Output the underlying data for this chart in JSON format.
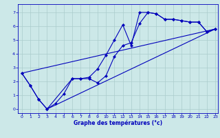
{
  "xlabel": "Graphe des températures (°c)",
  "xlim": [
    -0.5,
    23.3
  ],
  "ylim": [
    -0.3,
    7.6
  ],
  "xticks": [
    0,
    1,
    2,
    3,
    4,
    5,
    6,
    7,
    8,
    9,
    10,
    11,
    12,
    13,
    14,
    15,
    16,
    17,
    18,
    19,
    20,
    21,
    22,
    23
  ],
  "yticks": [
    0,
    1,
    2,
    3,
    4,
    5,
    6,
    7
  ],
  "bg_color": "#cce8e8",
  "grid_color": "#aacccc",
  "line_color": "#0000bb",
  "line1_x": [
    0,
    1,
    2,
    3,
    4,
    5,
    6,
    7,
    8,
    9,
    10,
    11,
    12,
    13,
    14,
    15,
    16,
    17,
    18,
    19,
    20,
    21,
    22,
    23
  ],
  "line1_y": [
    2.6,
    1.7,
    0.7,
    0.0,
    0.4,
    1.1,
    2.2,
    2.2,
    2.2,
    1.9,
    2.4,
    3.8,
    4.6,
    4.8,
    6.2,
    7.0,
    6.9,
    6.5,
    6.5,
    6.4,
    6.3,
    6.3,
    5.6,
    5.8
  ],
  "line2_x": [
    0,
    1,
    2,
    3,
    6,
    7,
    8,
    9,
    10,
    11,
    12,
    13,
    14,
    15,
    16,
    17,
    18,
    19,
    20,
    21,
    22,
    23
  ],
  "line2_y": [
    2.6,
    1.7,
    0.7,
    0.0,
    2.2,
    2.2,
    2.3,
    2.9,
    3.9,
    5.0,
    6.1,
    4.6,
    7.0,
    7.0,
    6.9,
    6.5,
    6.5,
    6.4,
    6.3,
    6.3,
    5.6,
    5.8
  ],
  "line3_x": [
    0,
    23
  ],
  "line3_y": [
    2.6,
    5.8
  ],
  "line4_x": [
    3,
    23
  ],
  "line4_y": [
    0.0,
    5.8
  ],
  "xlabel_fontsize": 5.5,
  "tick_fontsize": 4.5
}
